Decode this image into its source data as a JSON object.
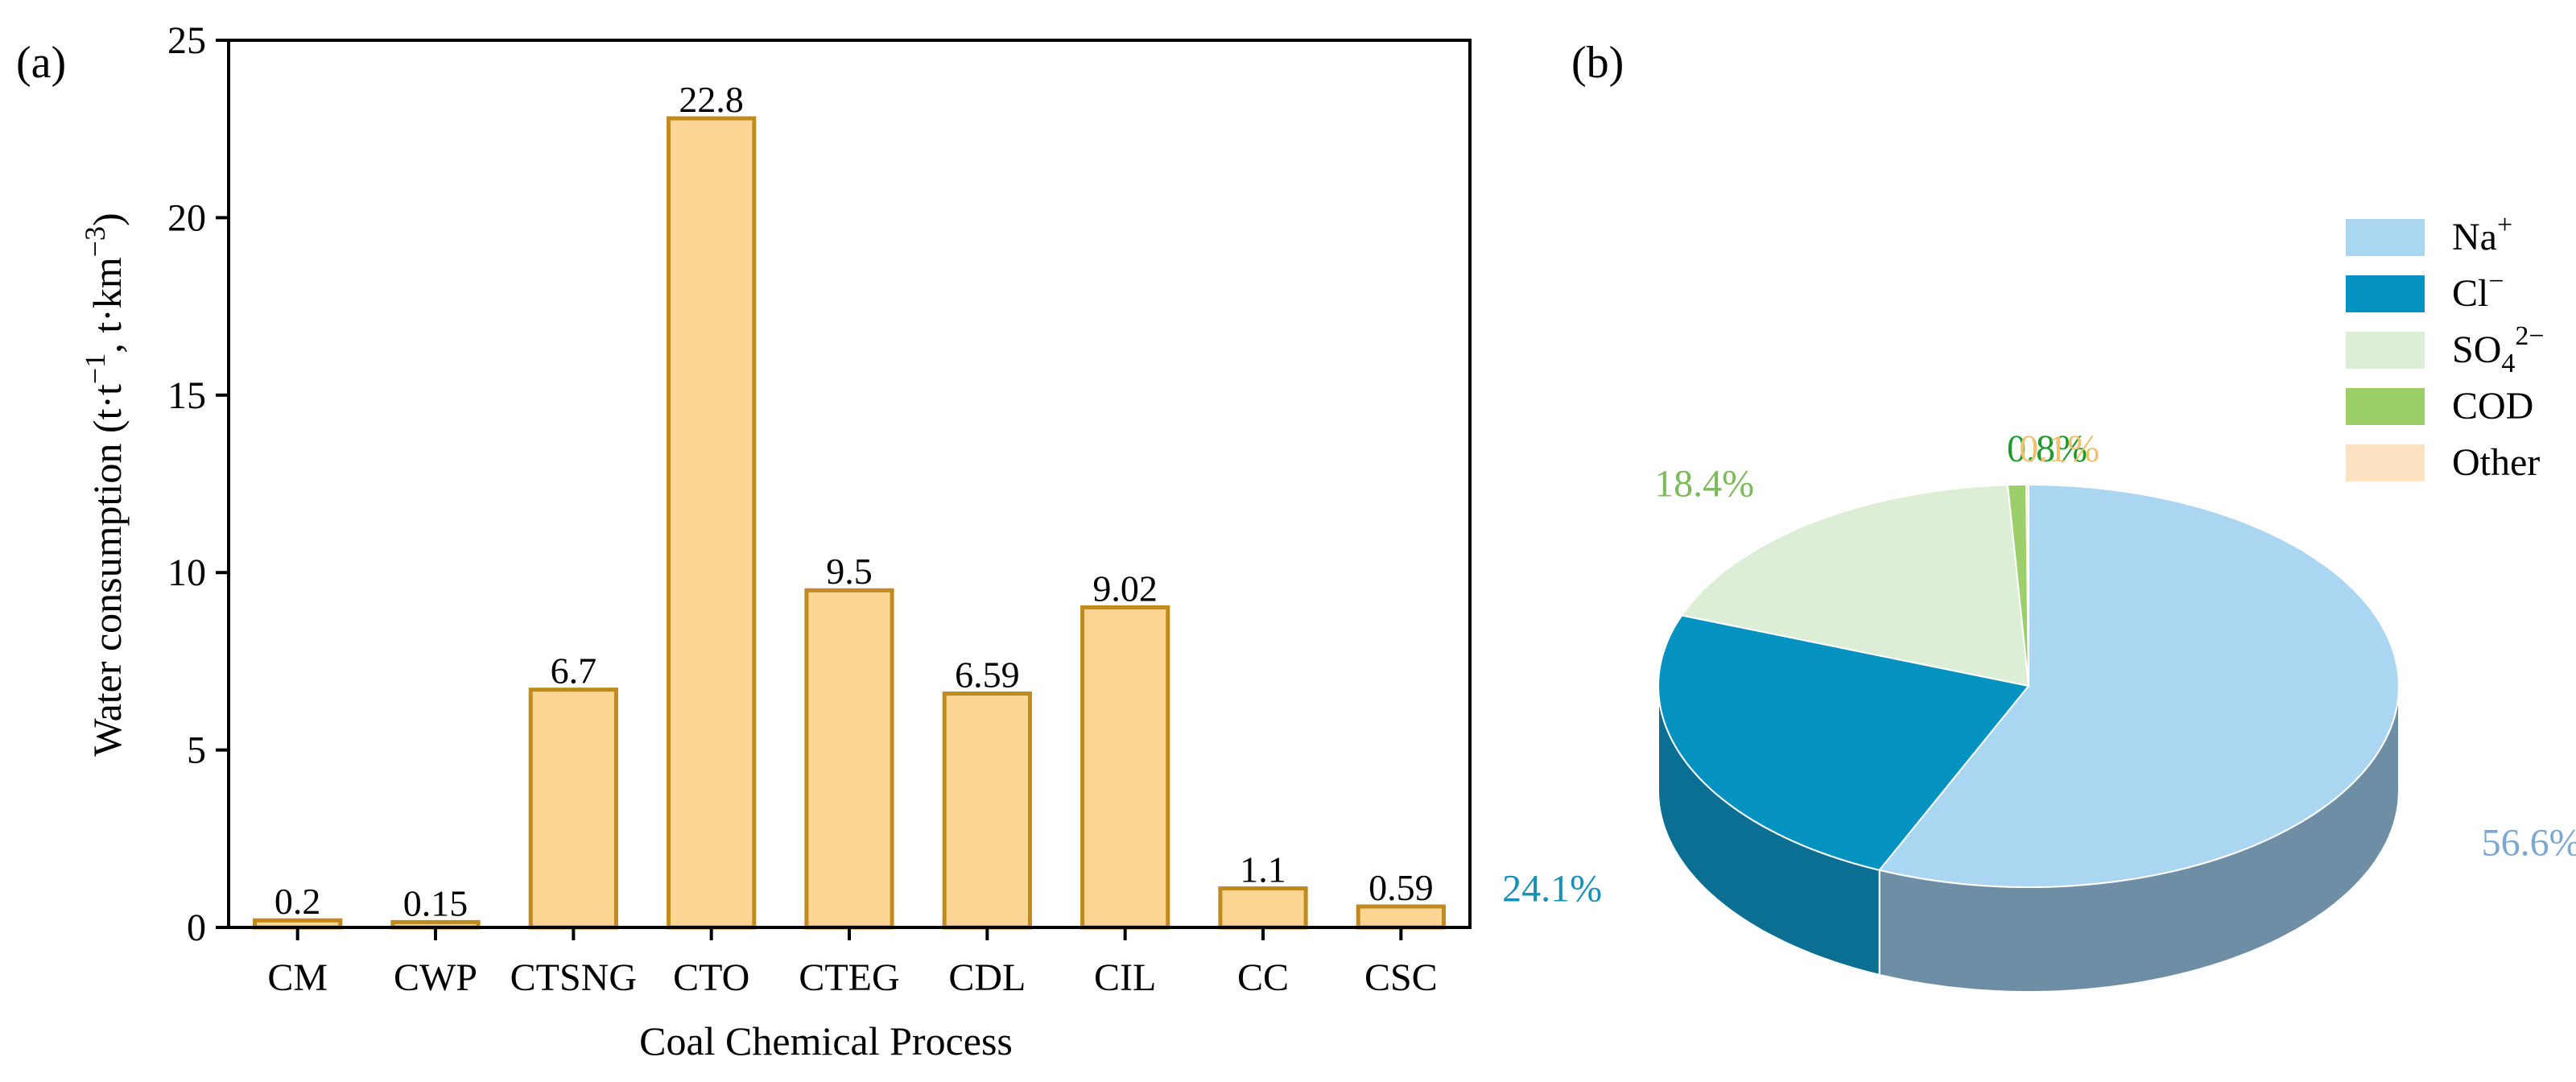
{
  "panel_a": {
    "panel_label": "(a)",
    "chart_data": {
      "type": "bar",
      "categories": [
        "CM",
        "CWP",
        "CTSNG",
        "CTO",
        "CTEG",
        "CDL",
        "CIL",
        "CC",
        "CSC"
      ],
      "values": [
        0.2,
        0.15,
        6.7,
        22.8,
        9.5,
        6.59,
        9.02,
        1.1,
        0.59
      ],
      "data_labels": [
        "0.2",
        "0.15",
        "6.7",
        "22.8",
        "9.5",
        "6.59",
        "9.02",
        "1.1",
        "0.59"
      ],
      "xlabel": "Coal Chemical Process",
      "ylabel": {
        "main": "Water consumption (t·t",
        "sup1": "−1",
        "mid": ", t·km",
        "sup2": "−3",
        "end": ")"
      },
      "ylim": [
        0,
        25
      ],
      "yticks": [
        0,
        5,
        10,
        15,
        20,
        25
      ],
      "grid": false,
      "bar_fill": "#fcd692",
      "bar_stroke": "#c08a1e"
    }
  },
  "panel_b": {
    "panel_label": "(b)",
    "chart_data": {
      "type": "pie",
      "style": "3d",
      "legend_position": "right",
      "slices": [
        {
          "label": "Na",
          "label_sup": "+",
          "label_sub": "",
          "value": 56.6,
          "display": "56.6%",
          "color": "#abd6f2",
          "side_color": "#6e8ea6",
          "text_color": "#7ba8d0"
        },
        {
          "label": "Cl",
          "label_sup": "−",
          "label_sub": "",
          "value": 24.1,
          "display": "24.1%",
          "color": "#0493c0",
          "side_color": "#0b6f93",
          "text_color": "#1790b8"
        },
        {
          "label": "SO",
          "label_sup": "2−",
          "label_sub": "4",
          "value": 18.4,
          "display": "18.4%",
          "color": "#ddeed6",
          "side_color": "#b7c8b3",
          "text_color": "#7cba5c"
        },
        {
          "label": "COD",
          "label_sup": "",
          "label_sub": "",
          "value": 0.8,
          "display": "0.8%",
          "color": "#9ccf69",
          "side_color": "#7aa852",
          "text_color": "#1e9a2e"
        },
        {
          "label": "Other",
          "label_sup": "",
          "label_sub": "",
          "value": 0.1,
          "display": "0.1%",
          "color": "#fde3c1",
          "side_color": "#d8c2a4",
          "text_color": "#f2c06e"
        }
      ]
    }
  }
}
